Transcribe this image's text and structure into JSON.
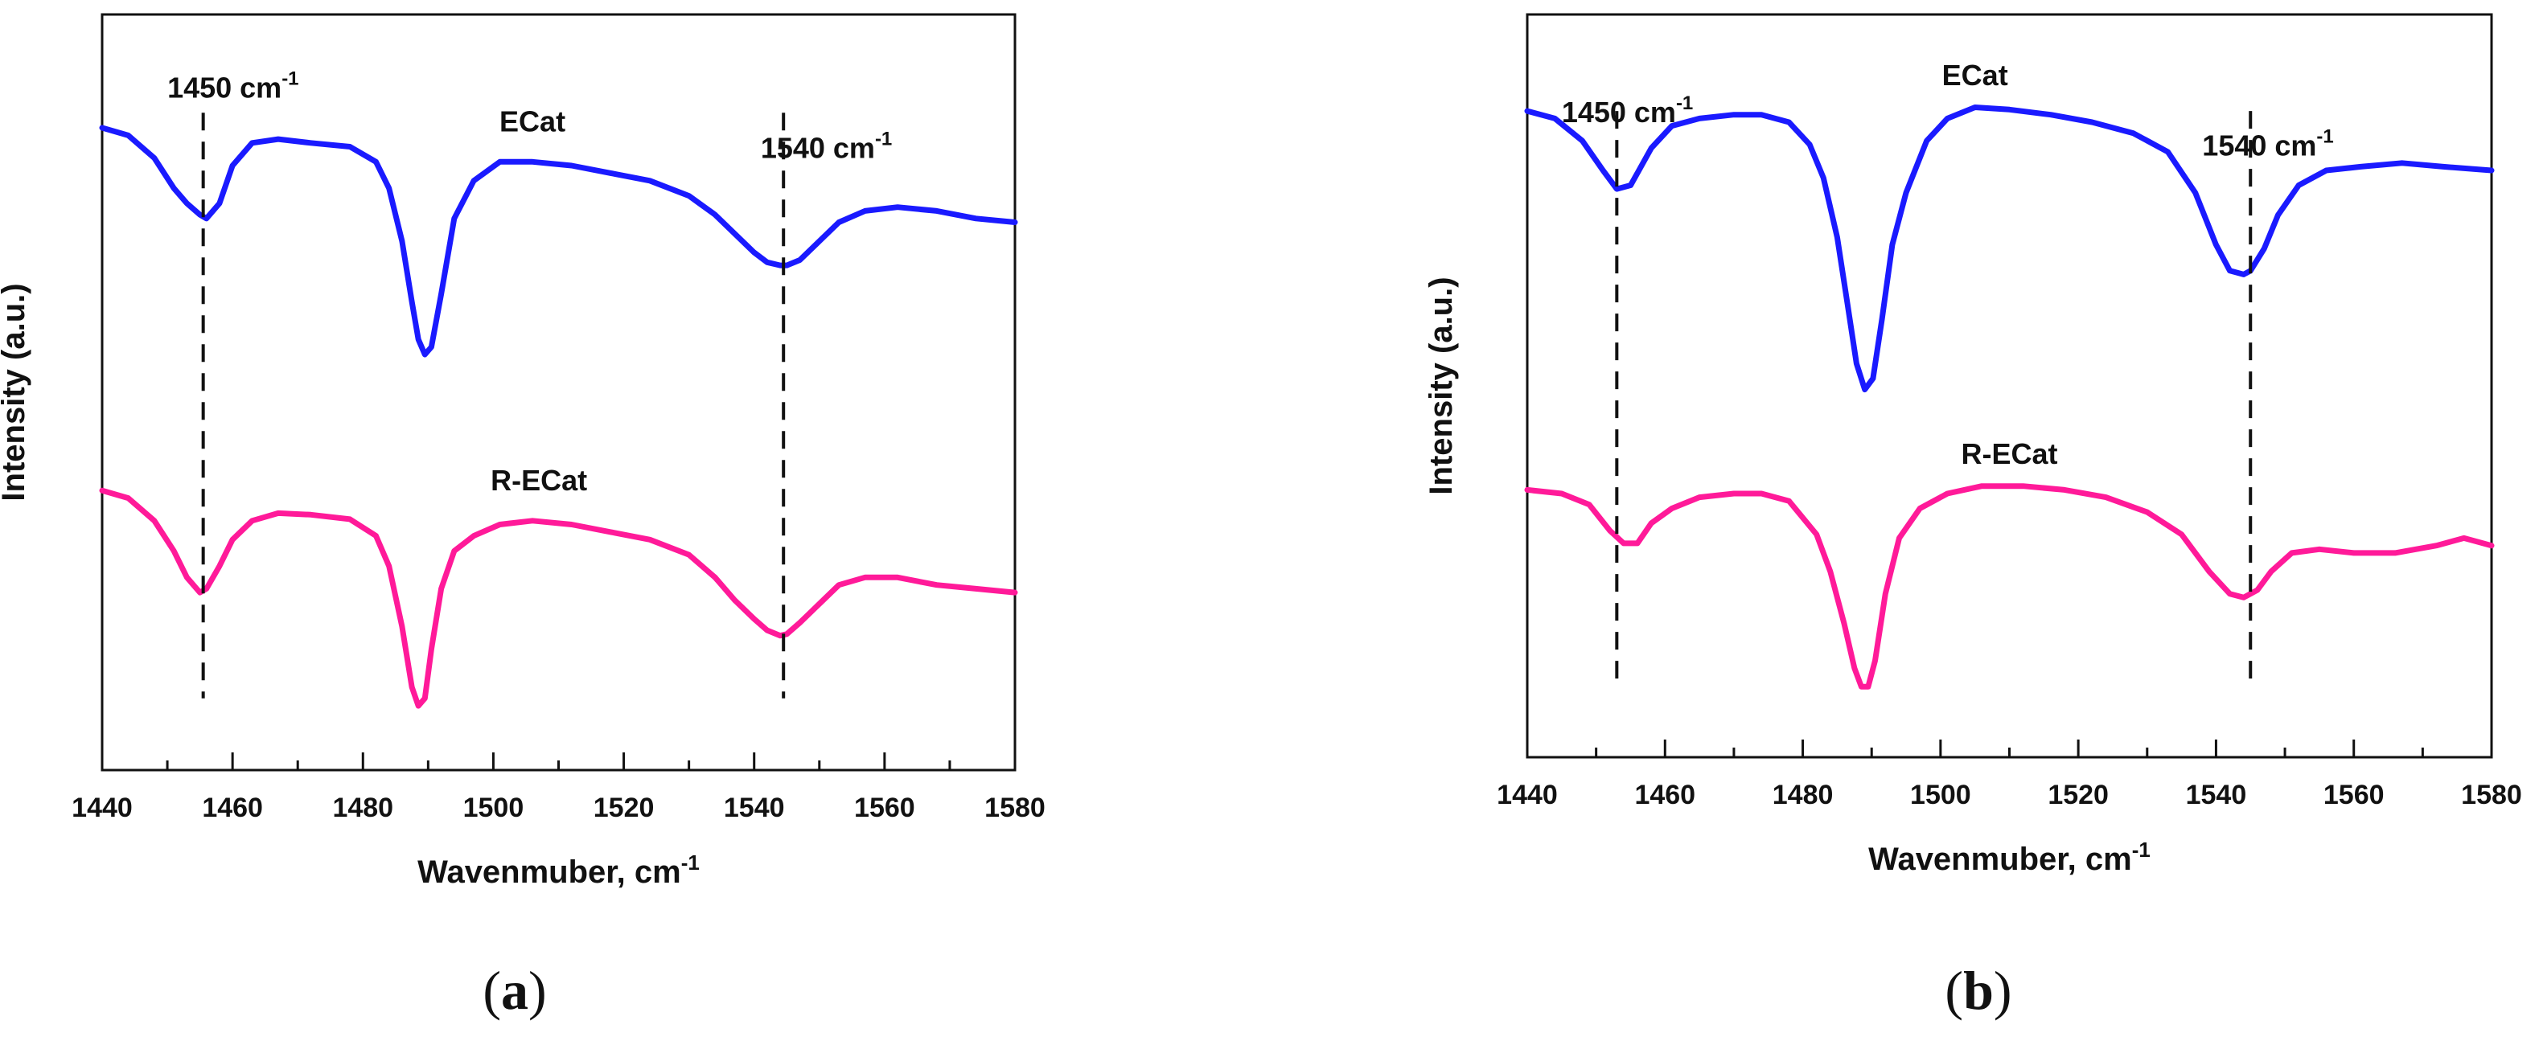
{
  "chart_data": [
    {
      "type": "line",
      "panel_label": "a",
      "xlabel": "Wavenmuber, cm",
      "xlabel_sup": "-1",
      "ylabel": "Intensity (a.u.)",
      "xlim": [
        1440,
        1580
      ],
      "ylim": [
        0,
        10
      ],
      "x_ticks": [
        1440,
        1460,
        1480,
        1500,
        1520,
        1540,
        1560,
        1580
      ],
      "series": [
        {
          "name": "ECat",
          "color": "#1a1aff",
          "label_at": [
            1506,
            8.45
          ],
          "x": [
            1440,
            1444,
            1448,
            1451,
            1453,
            1455,
            1456,
            1458,
            1460,
            1463,
            1467,
            1472,
            1478,
            1482,
            1484,
            1486,
            1487.5,
            1488.5,
            1489.5,
            1490.5,
            1492,
            1494,
            1497,
            1501,
            1506,
            1512,
            1518,
            1524,
            1530,
            1534,
            1537,
            1540,
            1542,
            1544,
            1545,
            1547,
            1550,
            1553,
            1557,
            1562,
            1568,
            1574,
            1580
          ],
          "y": [
            8.5,
            8.4,
            8.1,
            7.7,
            7.5,
            7.35,
            7.3,
            7.5,
            8.0,
            8.3,
            8.35,
            8.3,
            8.25,
            8.05,
            7.7,
            7.0,
            6.2,
            5.7,
            5.5,
            5.6,
            6.3,
            7.3,
            7.8,
            8.05,
            8.05,
            8.0,
            7.9,
            7.8,
            7.6,
            7.35,
            7.1,
            6.85,
            6.72,
            6.68,
            6.68,
            6.75,
            7.0,
            7.25,
            7.4,
            7.45,
            7.4,
            7.3,
            7.25
          ]
        },
        {
          "name": "R-ECat",
          "color": "#ff1a99",
          "label_at": [
            1507,
            3.7
          ],
          "x": [
            1440,
            1444,
            1448,
            1451,
            1453,
            1455,
            1456,
            1458,
            1460,
            1463,
            1467,
            1472,
            1478,
            1482,
            1484,
            1486,
            1487.5,
            1488.5,
            1489.5,
            1490.5,
            1492,
            1494,
            1497,
            1501,
            1506,
            1512,
            1518,
            1524,
            1530,
            1534,
            1537,
            1540,
            1542,
            1544,
            1545,
            1547,
            1550,
            1553,
            1557,
            1562,
            1568,
            1574,
            1580
          ],
          "y": [
            3.7,
            3.6,
            3.3,
            2.9,
            2.55,
            2.35,
            2.4,
            2.7,
            3.05,
            3.3,
            3.4,
            3.38,
            3.32,
            3.1,
            2.7,
            1.9,
            1.1,
            0.85,
            0.95,
            1.6,
            2.4,
            2.9,
            3.1,
            3.25,
            3.3,
            3.25,
            3.15,
            3.05,
            2.85,
            2.55,
            2.25,
            2.0,
            1.85,
            1.78,
            1.8,
            1.95,
            2.2,
            2.45,
            2.55,
            2.55,
            2.45,
            2.4,
            2.35
          ]
        }
      ],
      "markers": [
        {
          "x": 1455.5,
          "text": "1450 cm",
          "sup": "-1",
          "label_at": [
            1450,
            8.9
          ]
        },
        {
          "x": 1544.5,
          "text": "1540 cm",
          "sup": "-1",
          "label_at": [
            1541,
            8.1
          ]
        }
      ]
    },
    {
      "type": "line",
      "panel_label": "b",
      "xlabel": "Wavenmuber, cm",
      "xlabel_sup": "-1",
      "ylabel": "Intensity (a.u.)",
      "xlim": [
        1440,
        1580
      ],
      "ylim": [
        0,
        10
      ],
      "x_ticks": [
        1440,
        1460,
        1480,
        1500,
        1520,
        1540,
        1560,
        1580
      ],
      "series": [
        {
          "name": "ECat",
          "color": "#1a1aff",
          "label_at": [
            1505,
            9.05
          ],
          "x": [
            1440,
            1444,
            1448,
            1451,
            1453,
            1455,
            1458,
            1461,
            1465,
            1470,
            1474,
            1478,
            1481,
            1483,
            1485,
            1486.5,
            1487.8,
            1489,
            1490.2,
            1491.5,
            1493,
            1495,
            1498,
            1501,
            1505,
            1510,
            1516,
            1522,
            1528,
            1533,
            1537,
            1540,
            1542,
            1544,
            1545,
            1547,
            1549,
            1552,
            1556,
            1561,
            1567,
            1573,
            1580
          ],
          "y": [
            8.7,
            8.6,
            8.3,
            7.9,
            7.65,
            7.7,
            8.2,
            8.5,
            8.6,
            8.65,
            8.65,
            8.55,
            8.25,
            7.8,
            7.0,
            6.1,
            5.3,
            4.95,
            5.1,
            5.9,
            6.9,
            7.6,
            8.3,
            8.6,
            8.75,
            8.72,
            8.65,
            8.55,
            8.4,
            8.15,
            7.6,
            6.9,
            6.55,
            6.5,
            6.55,
            6.85,
            7.3,
            7.7,
            7.9,
            7.95,
            8.0,
            7.95,
            7.9
          ]
        },
        {
          "name": "R-ECat",
          "color": "#ff1a99",
          "label_at": [
            1510,
            3.95
          ],
          "x": [
            1440,
            1445,
            1449,
            1452,
            1454,
            1456,
            1458,
            1461,
            1465,
            1470,
            1474,
            1478,
            1482,
            1484,
            1486,
            1487.5,
            1488.5,
            1489.5,
            1490.5,
            1492,
            1494,
            1497,
            1501,
            1506,
            1512,
            1518,
            1524,
            1530,
            1535,
            1539,
            1542,
            1544,
            1546,
            1548,
            1551,
            1555,
            1560,
            1566,
            1572,
            1576,
            1580
          ],
          "y": [
            3.6,
            3.55,
            3.4,
            3.05,
            2.88,
            2.88,
            3.15,
            3.35,
            3.5,
            3.55,
            3.55,
            3.45,
            3.0,
            2.5,
            1.8,
            1.2,
            0.95,
            0.95,
            1.3,
            2.2,
            2.95,
            3.35,
            3.55,
            3.65,
            3.65,
            3.6,
            3.5,
            3.3,
            3.0,
            2.5,
            2.2,
            2.15,
            2.25,
            2.5,
            2.75,
            2.8,
            2.75,
            2.75,
            2.85,
            2.95,
            2.85
          ]
        }
      ],
      "markers": [
        {
          "x": 1453,
          "text": "1450 cm",
          "sup": "-1",
          "label_at": [
            1445,
            8.55
          ]
        },
        {
          "x": 1545,
          "text": "1540 cm",
          "sup": "-1",
          "label_at": [
            1538,
            8.1
          ]
        }
      ]
    }
  ]
}
